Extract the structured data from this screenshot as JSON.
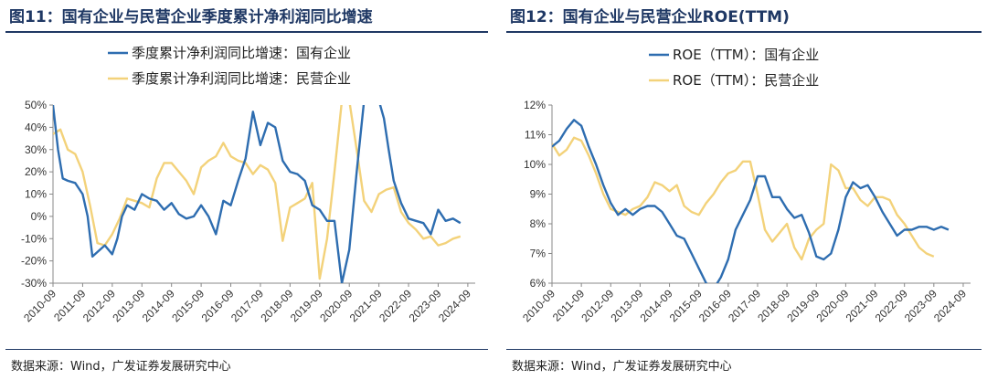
{
  "source_label": "数据来源：Wind，广发证券发展研究中心",
  "colors": {
    "soe": "#2e6db0",
    "private": "#f3d27a",
    "title": "#1f3864"
  },
  "chart_data": [
    {
      "id": "fig11",
      "type": "line",
      "title": "图11：国有企业与民营企业季度累计净利润同比增速",
      "ylim": [
        -30,
        50
      ],
      "y_ticks": [
        "-30%",
        "-20%",
        "-10%",
        "0%",
        "10%",
        "20%",
        "30%",
        "40%",
        "50%"
      ],
      "y_tick_values": [
        -30,
        -20,
        -10,
        0,
        10,
        20,
        30,
        40,
        50
      ],
      "x_range": [
        2010.75,
        2025.0
      ],
      "x_ticks": [
        "2010-09",
        "2011-09",
        "2012-09",
        "2013-09",
        "2014-09",
        "2015-09",
        "2016-09",
        "2017-09",
        "2018-09",
        "2019-09",
        "2020-09",
        "2021-09",
        "2022-09",
        "2023-09",
        "2024-09"
      ],
      "x_tick_values": [
        2010.75,
        2011.75,
        2012.75,
        2013.75,
        2014.75,
        2015.75,
        2016.75,
        2017.75,
        2018.75,
        2019.75,
        2020.75,
        2021.75,
        2022.75,
        2023.75,
        2024.75
      ],
      "legend_placement": "top-center",
      "series": [
        {
          "name": "季度累计净利润同比增速：国有企业",
          "color_key": "soe",
          "points": [
            [
              2010.75,
              50
            ],
            [
              2010.92,
              30
            ],
            [
              2011.08,
              17
            ],
            [
              2011.25,
              16
            ],
            [
              2011.5,
              15
            ],
            [
              2011.75,
              10
            ],
            [
              2011.92,
              0
            ],
            [
              2012.08,
              -18
            ],
            [
              2012.25,
              -16
            ],
            [
              2012.5,
              -13
            ],
            [
              2012.75,
              -17
            ],
            [
              2012.92,
              -10
            ],
            [
              2013.08,
              0
            ],
            [
              2013.25,
              5
            ],
            [
              2013.5,
              3
            ],
            [
              2013.75,
              10
            ],
            [
              2014.0,
              8
            ],
            [
              2014.25,
              7
            ],
            [
              2014.5,
              3
            ],
            [
              2014.75,
              6
            ],
            [
              2015.0,
              1
            ],
            [
              2015.25,
              -1
            ],
            [
              2015.5,
              0
            ],
            [
              2015.75,
              5
            ],
            [
              2016.0,
              0
            ],
            [
              2016.25,
              -8
            ],
            [
              2016.5,
              7
            ],
            [
              2016.75,
              5
            ],
            [
              2017.0,
              16
            ],
            [
              2017.25,
              26
            ],
            [
              2017.5,
              47
            ],
            [
              2017.75,
              32
            ],
            [
              2018.0,
              42
            ],
            [
              2018.25,
              40
            ],
            [
              2018.5,
              25
            ],
            [
              2018.75,
              20
            ],
            [
              2019.0,
              19
            ],
            [
              2019.25,
              16
            ],
            [
              2019.5,
              5
            ],
            [
              2019.75,
              3
            ],
            [
              2020.0,
              -2
            ],
            [
              2020.25,
              -2
            ],
            [
              2020.5,
              -30
            ],
            [
              2020.75,
              -15
            ],
            [
              2021.0,
              20
            ],
            [
              2021.25,
              52
            ],
            [
              2021.5,
              52
            ],
            [
              2021.75,
              52
            ],
            [
              2021.92,
              44
            ],
            [
              2022.08,
              30
            ],
            [
              2022.25,
              16
            ],
            [
              2022.5,
              6
            ],
            [
              2022.75,
              -1
            ],
            [
              2023.0,
              -2
            ],
            [
              2023.25,
              -3
            ],
            [
              2023.5,
              -8
            ],
            [
              2023.75,
              3
            ],
            [
              2024.0,
              -2
            ],
            [
              2024.25,
              -1
            ],
            [
              2024.5,
              -3
            ]
          ]
        },
        {
          "name": "季度累计净利润同比增速：民营企业",
          "color_key": "private",
          "points": [
            [
              2010.75,
              37
            ],
            [
              2011.0,
              39
            ],
            [
              2011.25,
              30
            ],
            [
              2011.5,
              28
            ],
            [
              2011.75,
              20
            ],
            [
              2012.0,
              5
            ],
            [
              2012.25,
              -12
            ],
            [
              2012.5,
              -13
            ],
            [
              2012.75,
              -8
            ],
            [
              2013.0,
              -1
            ],
            [
              2013.25,
              8
            ],
            [
              2013.5,
              7
            ],
            [
              2013.75,
              6
            ],
            [
              2014.0,
              4
            ],
            [
              2014.25,
              17
            ],
            [
              2014.5,
              24
            ],
            [
              2014.75,
              24
            ],
            [
              2015.0,
              20
            ],
            [
              2015.25,
              16
            ],
            [
              2015.5,
              10
            ],
            [
              2015.75,
              22
            ],
            [
              2016.0,
              25
            ],
            [
              2016.25,
              27
            ],
            [
              2016.5,
              33
            ],
            [
              2016.75,
              27
            ],
            [
              2017.0,
              25
            ],
            [
              2017.25,
              24
            ],
            [
              2017.5,
              19
            ],
            [
              2017.75,
              23
            ],
            [
              2018.0,
              21
            ],
            [
              2018.25,
              15
            ],
            [
              2018.5,
              -11
            ],
            [
              2018.75,
              4
            ],
            [
              2019.0,
              6
            ],
            [
              2019.25,
              8
            ],
            [
              2019.5,
              15
            ],
            [
              2019.75,
              -28
            ],
            [
              2020.0,
              -10
            ],
            [
              2020.25,
              20
            ],
            [
              2020.5,
              52
            ],
            [
              2020.75,
              52
            ],
            [
              2021.0,
              30
            ],
            [
              2021.25,
              7
            ],
            [
              2021.5,
              2
            ],
            [
              2021.75,
              10
            ],
            [
              2022.0,
              12
            ],
            [
              2022.25,
              13
            ],
            [
              2022.5,
              2
            ],
            [
              2022.75,
              -3
            ],
            [
              2023.0,
              -6
            ],
            [
              2023.25,
              -10
            ],
            [
              2023.5,
              -9
            ],
            [
              2023.75,
              -13
            ],
            [
              2024.0,
              -12
            ],
            [
              2024.25,
              -10
            ],
            [
              2024.5,
              -9
            ]
          ]
        }
      ]
    },
    {
      "id": "fig12",
      "type": "line",
      "title": "图12：国有企业与民营企业ROE(TTM)",
      "ylim": [
        6,
        12
      ],
      "y_ticks": [
        "6%",
        "7%",
        "8%",
        "9%",
        "10%",
        "11%",
        "12%"
      ],
      "y_tick_values": [
        6,
        7,
        8,
        9,
        10,
        11,
        12
      ],
      "x_range": [
        2010.75,
        2025.0
      ],
      "x_ticks": [
        "2010-09",
        "2011-09",
        "2012-09",
        "2013-09",
        "2014-09",
        "2015-09",
        "2016-09",
        "2017-09",
        "2018-09",
        "2019-09",
        "2020-09",
        "2021-09",
        "2022-09",
        "2023-09",
        "2024-09"
      ],
      "x_tick_values": [
        2010.75,
        2011.75,
        2012.75,
        2013.75,
        2014.75,
        2015.75,
        2016.75,
        2017.75,
        2018.75,
        2019.75,
        2020.75,
        2021.75,
        2022.75,
        2023.75,
        2024.75
      ],
      "legend_placement": "top-center",
      "series": [
        {
          "name": "ROE（TTM）：国有企业",
          "color_key": "soe",
          "points": [
            [
              2010.75,
              10.6
            ],
            [
              2011.0,
              10.8
            ],
            [
              2011.25,
              11.2
            ],
            [
              2011.5,
              11.5
            ],
            [
              2011.75,
              11.3
            ],
            [
              2012.0,
              10.6
            ],
            [
              2012.25,
              10.0
            ],
            [
              2012.5,
              9.3
            ],
            [
              2012.75,
              8.7
            ],
            [
              2013.0,
              8.3
            ],
            [
              2013.25,
              8.5
            ],
            [
              2013.5,
              8.3
            ],
            [
              2013.75,
              8.5
            ],
            [
              2014.0,
              8.6
            ],
            [
              2014.25,
              8.6
            ],
            [
              2014.5,
              8.4
            ],
            [
              2014.75,
              8.0
            ],
            [
              2015.0,
              7.6
            ],
            [
              2015.25,
              7.5
            ],
            [
              2015.5,
              7.0
            ],
            [
              2015.75,
              6.5
            ],
            [
              2016.0,
              6.0
            ],
            [
              2016.25,
              5.8
            ],
            [
              2016.5,
              6.2
            ],
            [
              2016.75,
              6.8
            ],
            [
              2017.0,
              7.8
            ],
            [
              2017.25,
              8.3
            ],
            [
              2017.5,
              8.8
            ],
            [
              2017.75,
              9.6
            ],
            [
              2018.0,
              9.6
            ],
            [
              2018.25,
              8.9
            ],
            [
              2018.5,
              8.9
            ],
            [
              2018.75,
              8.5
            ],
            [
              2019.0,
              8.2
            ],
            [
              2019.25,
              8.3
            ],
            [
              2019.5,
              7.7
            ],
            [
              2019.75,
              6.9
            ],
            [
              2020.0,
              6.8
            ],
            [
              2020.25,
              7.0
            ],
            [
              2020.5,
              7.8
            ],
            [
              2020.75,
              8.9
            ],
            [
              2021.0,
              9.4
            ],
            [
              2021.25,
              9.2
            ],
            [
              2021.5,
              9.3
            ],
            [
              2021.75,
              8.9
            ],
            [
              2022.0,
              8.4
            ],
            [
              2022.25,
              8.0
            ],
            [
              2022.5,
              7.6
            ],
            [
              2022.75,
              7.8
            ],
            [
              2023.0,
              7.8
            ],
            [
              2023.25,
              7.9
            ],
            [
              2023.5,
              7.9
            ],
            [
              2023.75,
              7.8
            ],
            [
              2024.0,
              7.9
            ],
            [
              2024.25,
              7.8
            ]
          ]
        },
        {
          "name": "ROE（TTM）：民营企业",
          "color_key": "private",
          "points": [
            [
              2010.75,
              10.7
            ],
            [
              2011.0,
              10.3
            ],
            [
              2011.25,
              10.5
            ],
            [
              2011.5,
              10.9
            ],
            [
              2011.75,
              10.8
            ],
            [
              2012.0,
              10.3
            ],
            [
              2012.25,
              9.7
            ],
            [
              2012.5,
              9.0
            ],
            [
              2012.75,
              8.5
            ],
            [
              2013.0,
              8.4
            ],
            [
              2013.25,
              8.3
            ],
            [
              2013.5,
              8.5
            ],
            [
              2013.75,
              8.6
            ],
            [
              2014.0,
              8.9
            ],
            [
              2014.25,
              9.4
            ],
            [
              2014.5,
              9.3
            ],
            [
              2014.75,
              9.1
            ],
            [
              2015.0,
              9.3
            ],
            [
              2015.25,
              8.6
            ],
            [
              2015.5,
              8.4
            ],
            [
              2015.75,
              8.3
            ],
            [
              2016.0,
              8.7
            ],
            [
              2016.25,
              9.0
            ],
            [
              2016.5,
              9.4
            ],
            [
              2016.75,
              9.7
            ],
            [
              2017.0,
              9.8
            ],
            [
              2017.25,
              10.1
            ],
            [
              2017.5,
              10.1
            ],
            [
              2017.75,
              9.0
            ],
            [
              2018.0,
              7.8
            ],
            [
              2018.25,
              7.4
            ],
            [
              2018.5,
              7.7
            ],
            [
              2018.75,
              8.0
            ],
            [
              2019.0,
              7.2
            ],
            [
              2019.25,
              6.8
            ],
            [
              2019.5,
              7.5
            ],
            [
              2019.75,
              7.8
            ],
            [
              2020.0,
              8.0
            ],
            [
              2020.25,
              10.0
            ],
            [
              2020.5,
              9.8
            ],
            [
              2020.75,
              9.2
            ],
            [
              2021.0,
              9.2
            ],
            [
              2021.25,
              8.8
            ],
            [
              2021.5,
              8.6
            ],
            [
              2021.75,
              8.9
            ],
            [
              2022.0,
              8.9
            ],
            [
              2022.25,
              8.8
            ],
            [
              2022.5,
              8.3
            ],
            [
              2022.75,
              8.0
            ],
            [
              2023.0,
              7.6
            ],
            [
              2023.25,
              7.2
            ],
            [
              2023.5,
              7.0
            ],
            [
              2023.75,
              6.9
            ]
          ]
        }
      ]
    }
  ]
}
